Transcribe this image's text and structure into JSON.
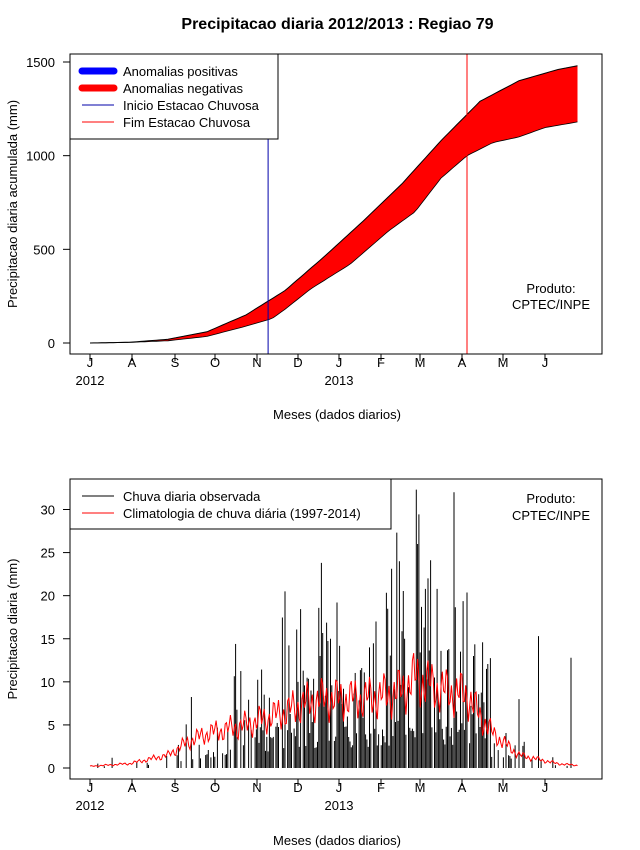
{
  "title": "Precipitacao diaria 2012/2013 : Regiao 79",
  "producer_label": "Produto:",
  "producer_name": "CPTEC/INPE",
  "colors": {
    "positive": "#0000ff",
    "negative": "#ff0000",
    "start": "#0000aa",
    "end": "#ff0000",
    "observed": "#000000",
    "climatology": "#ff0000"
  },
  "chart_data": [
    {
      "type": "area",
      "name": "accumulated",
      "xlabel": "Meses (dados diarios)",
      "ylabel": "Precipitacao diaria acumulada (mm)",
      "ylim": [
        0,
        1500
      ],
      "yticks": [
        0,
        500,
        1000,
        1500
      ],
      "month_ticks": [
        "J",
        "A",
        "S",
        "O",
        "N",
        "D",
        "J",
        "F",
        "M",
        "A",
        "M",
        "J"
      ],
      "year_labels": [
        "2012",
        "2013"
      ],
      "legend": [
        "Anomalias positivas",
        "Anomalias negativas",
        "Inicio Estacao Chuvosa",
        "Fim Estacao Chuvosa"
      ],
      "rainy_season_start_day": 137,
      "rainy_season_end_day": 290,
      "climatology_cumulative": [
        [
          0,
          0
        ],
        [
          30,
          4
        ],
        [
          60,
          20
        ],
        [
          90,
          60
        ],
        [
          120,
          150
        ],
        [
          150,
          280
        ],
        [
          180,
          460
        ],
        [
          210,
          650
        ],
        [
          240,
          850
        ],
        [
          270,
          1080
        ],
        [
          300,
          1290
        ],
        [
          330,
          1400
        ],
        [
          360,
          1460
        ],
        [
          375,
          1480
        ]
      ],
      "observed_cumulative": [
        [
          0,
          0
        ],
        [
          30,
          3
        ],
        [
          60,
          12
        ],
        [
          90,
          35
        ],
        [
          120,
          90
        ],
        [
          140,
          130
        ],
        [
          150,
          180
        ],
        [
          170,
          290
        ],
        [
          200,
          420
        ],
        [
          230,
          600
        ],
        [
          250,
          700
        ],
        [
          270,
          880
        ],
        [
          290,
          1000
        ],
        [
          310,
          1070
        ],
        [
          330,
          1100
        ],
        [
          350,
          1150
        ],
        [
          375,
          1180
        ]
      ]
    },
    {
      "type": "line",
      "name": "daily",
      "xlabel": "Meses (dados diarios)",
      "ylabel": "Precipitacao diaria (mm)",
      "ylim": [
        0,
        32
      ],
      "yticks": [
        0,
        5,
        10,
        15,
        20,
        25,
        30
      ],
      "month_ticks": [
        "J",
        "A",
        "S",
        "O",
        "N",
        "D",
        "J",
        "F",
        "M",
        "A",
        "M",
        "J"
      ],
      "year_labels": [
        "2012",
        "2013"
      ],
      "legend": [
        "Chuva diaria observada",
        "Climatologia de chuva diária (1997-2014)"
      ],
      "climatology_knots": [
        [
          0,
          0.2
        ],
        [
          30,
          0.5
        ],
        [
          45,
          1.0
        ],
        [
          60,
          1.5
        ],
        [
          75,
          3.0
        ],
        [
          90,
          4.0
        ],
        [
          120,
          5.0
        ],
        [
          150,
          6.5
        ],
        [
          165,
          7.5
        ],
        [
          180,
          8.0
        ],
        [
          210,
          8.0
        ],
        [
          230,
          8.5
        ],
        [
          240,
          9.0
        ],
        [
          250,
          10.5
        ],
        [
          270,
          9.0
        ],
        [
          290,
          8.5
        ],
        [
          300,
          6.0
        ],
        [
          310,
          4.0
        ],
        [
          330,
          1.5
        ],
        [
          360,
          0.5
        ],
        [
          375,
          0.3
        ]
      ],
      "peaks": [
        [
          150,
          20.5
        ],
        [
          160,
          10
        ],
        [
          170,
          9
        ],
        [
          177,
          13
        ],
        [
          185,
          15
        ],
        [
          190,
          19.2
        ],
        [
          215,
          14
        ],
        [
          220,
          17
        ],
        [
          242,
          15
        ],
        [
          251,
          32.3
        ],
        [
          252,
          26
        ],
        [
          260,
          22
        ],
        [
          265,
          10.5
        ],
        [
          280,
          32
        ],
        [
          295,
          13
        ],
        [
          305,
          11.5
        ],
        [
          330,
          8
        ],
        [
          345,
          15.3
        ],
        [
          370,
          12.8
        ]
      ]
    }
  ]
}
